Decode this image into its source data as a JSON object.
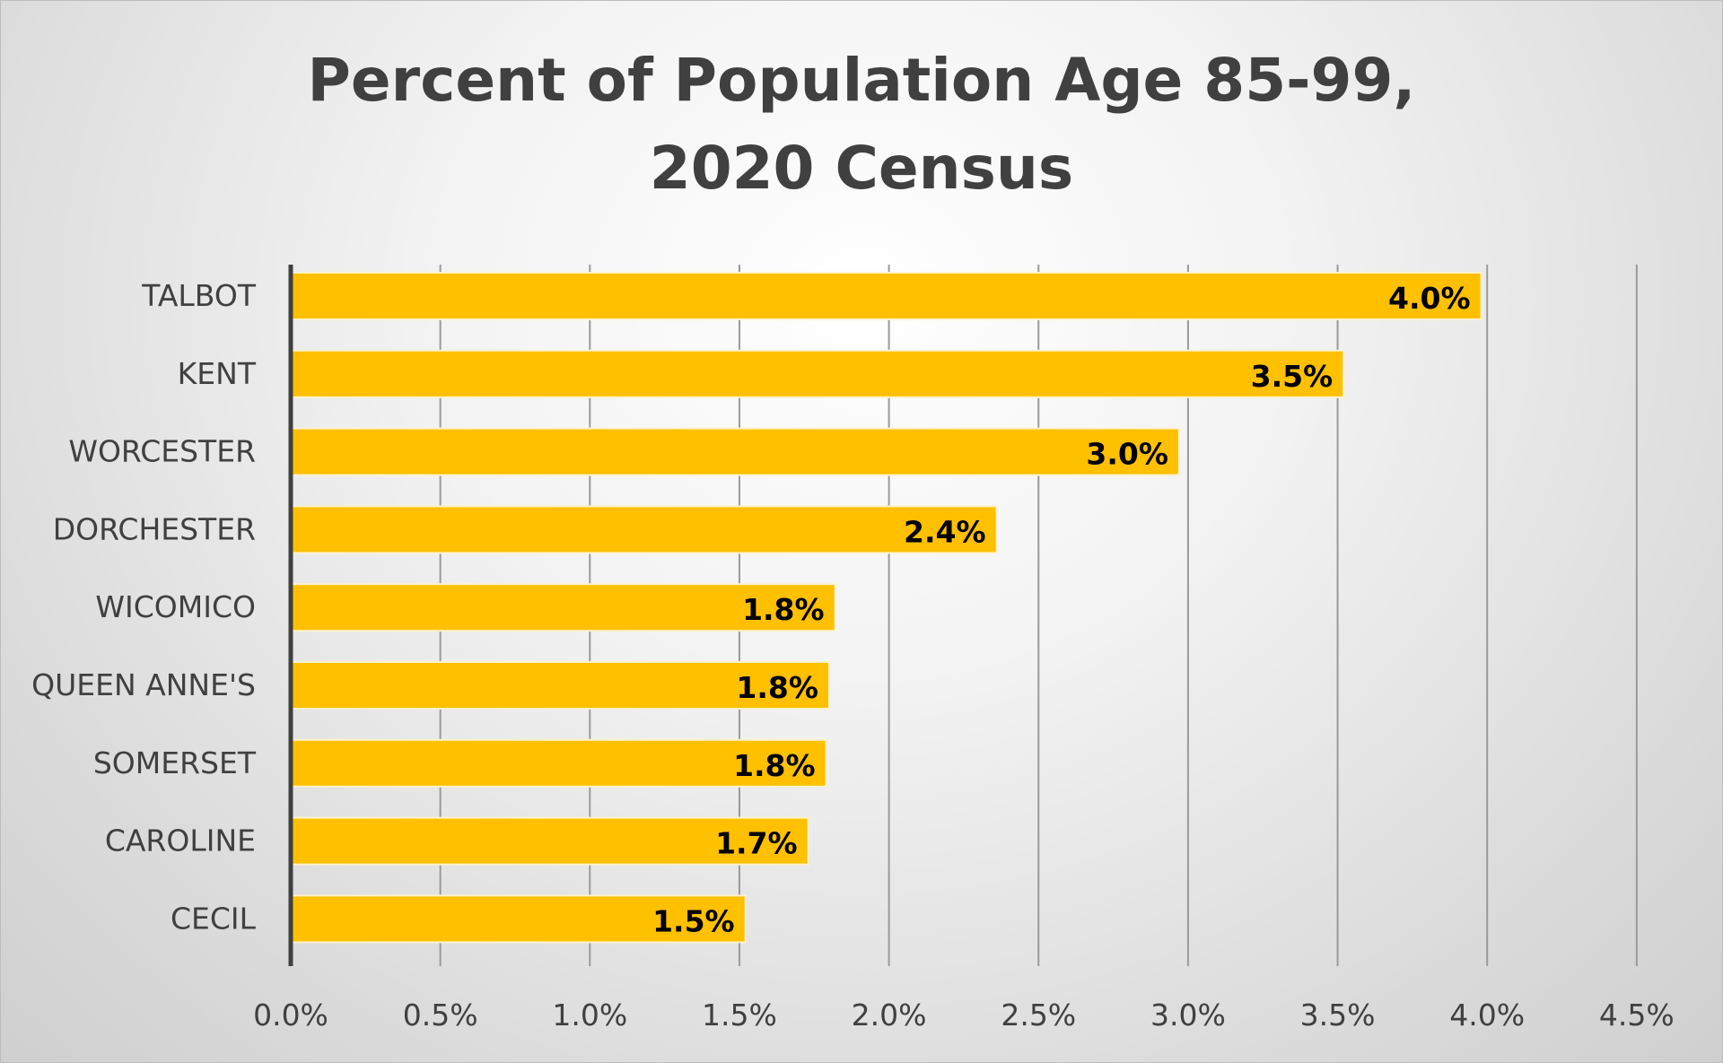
{
  "chart_data": {
    "type": "bar",
    "orientation": "horizontal",
    "title_lines": [
      "Percent of Population Age 85-99,",
      "2020 Census"
    ],
    "categories": [
      "TALBOT",
      "KENT",
      "WORCESTER",
      "DORCHESTER",
      "WICOMICO",
      "QUEEN ANNE'S",
      "SOMERSET",
      "CAROLINE",
      "CECIL"
    ],
    "values": [
      3.98,
      3.52,
      2.97,
      2.36,
      1.82,
      1.8,
      1.79,
      1.73,
      1.52
    ],
    "data_labels": [
      "4.0%",
      "3.5%",
      "3.0%",
      "2.4%",
      "1.8%",
      "1.8%",
      "1.8%",
      "1.7%",
      "1.5%"
    ],
    "x_ticks": [
      0,
      0.5,
      1.0,
      1.5,
      2.0,
      2.5,
      3.0,
      3.5,
      4.0,
      4.5
    ],
    "x_tick_labels": [
      "0.0%",
      "0.5%",
      "1.0%",
      "1.5%",
      "2.0%",
      "2.5%",
      "3.0%",
      "3.5%",
      "4.0%",
      "4.5%"
    ],
    "xlim": [
      0,
      4.5
    ],
    "xlabel": "",
    "ylabel": "",
    "grid": "vertical",
    "legend": "none",
    "colors": {
      "bar": "#FFC000",
      "bar_edge": "#FFF2CC",
      "grid": "#9a9a9a",
      "axis": "#404040",
      "text": "#404040",
      "data_label": "#000000"
    }
  }
}
